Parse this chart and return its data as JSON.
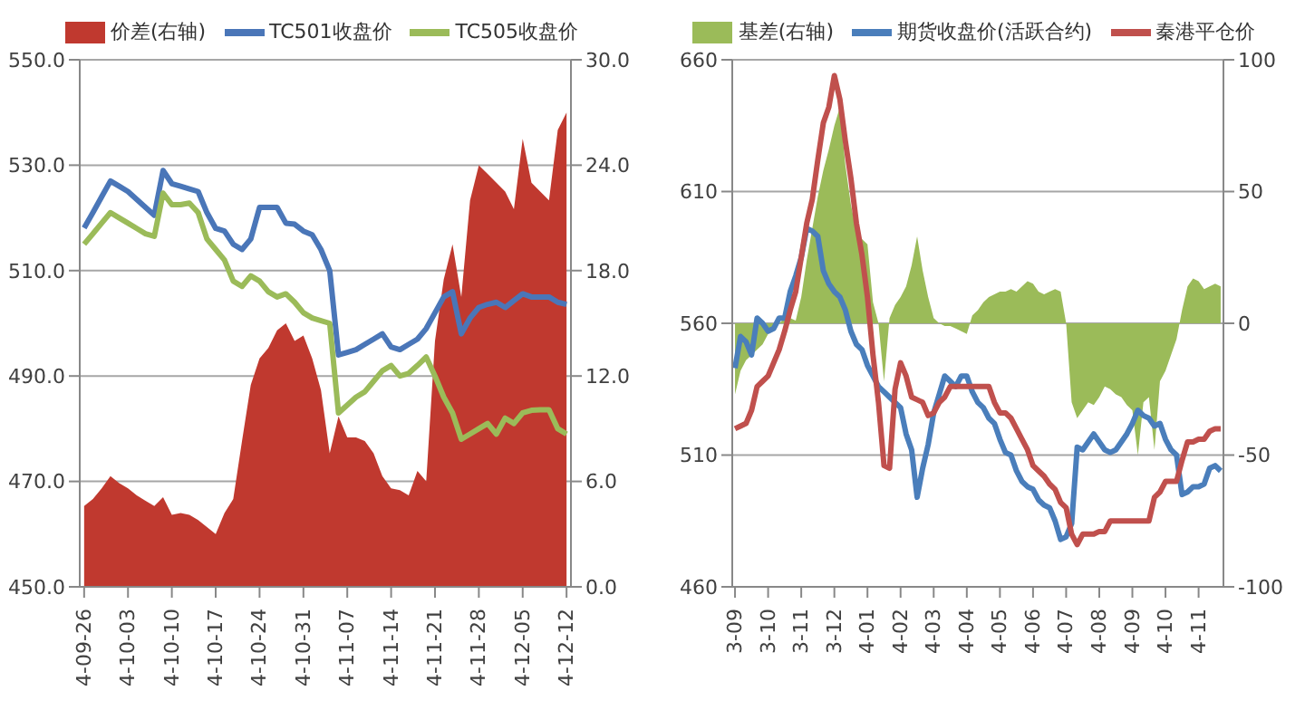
{
  "chart_data": [
    {
      "type": "line",
      "legend": "top",
      "grid": "y",
      "marker": "none",
      "categories": [
        "4-09-26",
        null,
        null,
        null,
        null,
        "4-10-03",
        null,
        null,
        null,
        null,
        "4-10-10",
        null,
        null,
        null,
        null,
        "4-10-17",
        null,
        null,
        null,
        null,
        "4-10-24",
        null,
        null,
        null,
        null,
        "4-10-31",
        null,
        null,
        null,
        null,
        "4-11-07",
        null,
        null,
        null,
        null,
        "4-11-14",
        null,
        null,
        null,
        null,
        "4-11-21",
        null,
        null,
        null,
        null,
        "4-11-28",
        null,
        null,
        null,
        null,
        "4-12-05",
        null,
        null,
        null,
        null,
        "4-12-12"
      ],
      "ylim": [
        450,
        550
      ],
      "yticks": [
        {
          "value": 450,
          "label": "450.0"
        },
        {
          "value": 470,
          "label": "470.0"
        },
        {
          "value": 490,
          "label": "490.0"
        },
        {
          "value": 510,
          "label": "510.0"
        },
        {
          "value": 530,
          "label": "530.0"
        },
        {
          "value": 550,
          "label": "550.0"
        }
      ],
      "y2lim": [
        0,
        30
      ],
      "y2ticks": [
        {
          "value": 0,
          "label": "0.0"
        },
        {
          "value": 6,
          "label": "6.0"
        },
        {
          "value": 12,
          "label": "12.0"
        },
        {
          "value": 18,
          "label": "18.0"
        },
        {
          "value": 24,
          "label": "24.0"
        },
        {
          "value": 30,
          "label": "30.0"
        }
      ],
      "series": [
        {
          "name": "价差(右轴)",
          "type": "area",
          "axis": "y2",
          "color": "#c0392f",
          "values": [
            4.6,
            5.0,
            5.6,
            6.3,
            5.9,
            5.6,
            5.2,
            4.9,
            4.6,
            5.1,
            4.1,
            4.2,
            4.1,
            3.8,
            3.4,
            3.0,
            4.2,
            5.0,
            8.3,
            11.5,
            13.0,
            13.6,
            14.6,
            15.0,
            14.0,
            14.3,
            13.0,
            11.2,
            7.6,
            9.7,
            8.5,
            8.5,
            8.3,
            7.6,
            6.3,
            5.6,
            5.5,
            5.2,
            6.6,
            6.0,
            14.0,
            17.5,
            19.5,
            16.5,
            22.0,
            24.0,
            23.5,
            23.0,
            22.5,
            21.5,
            25.5,
            23.0,
            22.5,
            22.0,
            26.0,
            27.0
          ]
        },
        {
          "name": "TC501收盘价",
          "color": "#4a76b8",
          "values": [
            518.1,
            521,
            524,
            527,
            526,
            525,
            523.5,
            522,
            520.5,
            529,
            526.5,
            526,
            525.5,
            525,
            521,
            518,
            517.5,
            515,
            514,
            516,
            522,
            522,
            522,
            519,
            518.8,
            517.5,
            516.8,
            514,
            510,
            494,
            494.5,
            495,
            496,
            497,
            498,
            495.5,
            495,
            496,
            497,
            499,
            502,
            505,
            506,
            498,
            501,
            503,
            503.6,
            504,
            503,
            504.3,
            505.6,
            505,
            505,
            505,
            504,
            503.6
          ]
        },
        {
          "name": "TC505收盘价",
          "color": "#9bbb59",
          "values": [
            515,
            517,
            519,
            521,
            520,
            519,
            518,
            517,
            516.5,
            524.7,
            522.5,
            522.5,
            522.8,
            521,
            516,
            514,
            512,
            508,
            507,
            509,
            508,
            506,
            505,
            505.6,
            504,
            502,
            501,
            500.5,
            500,
            483,
            484.5,
            486,
            487,
            489,
            491,
            492,
            490,
            490.5,
            492,
            493.6,
            490,
            486,
            483,
            478,
            479,
            480,
            481,
            479,
            482,
            481,
            483,
            483.5,
            483.6,
            483.6,
            480,
            479
          ]
        }
      ]
    },
    {
      "type": "line",
      "legend": "top",
      "grid": "y",
      "marker": "none",
      "categories": [
        "3-09",
        null,
        null,
        null,
        null,
        null,
        "3-10",
        null,
        null,
        null,
        null,
        null,
        "3-11",
        null,
        null,
        null,
        null,
        null,
        "3-12",
        null,
        null,
        null,
        null,
        null,
        "4-01",
        null,
        null,
        null,
        null,
        null,
        "4-02",
        null,
        null,
        null,
        null,
        null,
        "4-03",
        null,
        null,
        null,
        null,
        null,
        "4-04",
        null,
        null,
        null,
        null,
        null,
        "4-05",
        null,
        null,
        null,
        null,
        null,
        "4-06",
        null,
        null,
        null,
        null,
        null,
        "4-07",
        null,
        null,
        null,
        null,
        null,
        "4-08",
        null,
        null,
        null,
        null,
        null,
        "4-09",
        null,
        null,
        null,
        null,
        null,
        "4-10",
        null,
        null,
        null,
        null,
        null,
        "4-11",
        null,
        null,
        null,
        null
      ],
      "ylim": [
        460,
        660
      ],
      "yticks": [
        460,
        510,
        560,
        610,
        660
      ],
      "y2lim": [
        -100,
        100
      ],
      "y2ticks": [
        -100,
        -50,
        0,
        50,
        100
      ],
      "series": [
        {
          "name": "基差(右轴)",
          "type": "area",
          "axis": "y2",
          "color": "#9bbb59",
          "values": [
            -27,
            -18,
            -14,
            -12,
            -10,
            -8,
            -4,
            -2,
            0,
            2,
            2,
            1,
            10,
            24,
            36,
            48,
            58,
            66,
            75,
            82,
            60,
            45,
            35,
            32,
            30,
            8,
            0,
            -22,
            2,
            7,
            10,
            14,
            22,
            33,
            20,
            10,
            2,
            0,
            -1,
            -1,
            -2,
            -3,
            -4,
            3,
            5,
            8,
            10,
            11,
            12,
            12,
            13,
            12,
            14,
            16,
            15,
            12,
            11,
            12,
            13,
            12,
            0,
            -30,
            -36,
            -33,
            -30,
            -31,
            -28,
            -24,
            -25,
            -27,
            -28,
            -31,
            -33,
            -50,
            -30,
            -28,
            -48,
            -22,
            -18,
            -12,
            -6,
            5,
            14,
            17,
            16,
            13,
            14,
            15,
            14
          ]
        },
        {
          "name": "期货收盘价(活跃合约)",
          "color": "#4a7ebb",
          "values": [
            543,
            555,
            553,
            548,
            562,
            560,
            557,
            558,
            562,
            562,
            572,
            578,
            585,
            596,
            595,
            593,
            580,
            575,
            572,
            570,
            565,
            557,
            552,
            550,
            544,
            540,
            536,
            534,
            532,
            530,
            528,
            518,
            512,
            494,
            505,
            514,
            526,
            533,
            540,
            538,
            536,
            540,
            540,
            534,
            530,
            528,
            524,
            522,
            516,
            511,
            510,
            504,
            500,
            498,
            497,
            493,
            491,
            490,
            485,
            478,
            479,
            484,
            513,
            512,
            515,
            518,
            515,
            512,
            511,
            512,
            515,
            518,
            522,
            527,
            525,
            524,
            521,
            522,
            516,
            512,
            510,
            495,
            496,
            498,
            498,
            499,
            505,
            506,
            504
          ]
        },
        {
          "name": "秦港平仓价",
          "color": "#c0504d",
          "values": [
            520,
            521,
            522,
            527,
            536,
            538,
            540,
            545,
            550,
            557,
            565,
            572,
            585,
            598,
            607,
            622,
            636,
            642,
            654,
            645,
            629,
            615,
            598,
            586,
            570,
            548,
            530,
            506,
            505,
            535,
            545,
            540,
            532,
            531,
            530,
            525,
            526,
            530,
            532,
            536,
            536,
            536,
            536,
            536,
            536,
            536,
            536,
            530,
            526,
            526,
            524,
            520,
            516,
            512,
            506,
            504,
            502,
            499,
            497,
            492,
            490,
            480,
            476,
            480,
            480,
            480,
            481,
            481,
            485,
            485,
            485,
            485,
            485,
            485,
            485,
            485,
            494,
            496,
            500,
            500,
            500,
            508,
            515,
            515,
            516,
            516,
            519,
            520,
            520
          ]
        }
      ]
    }
  ]
}
